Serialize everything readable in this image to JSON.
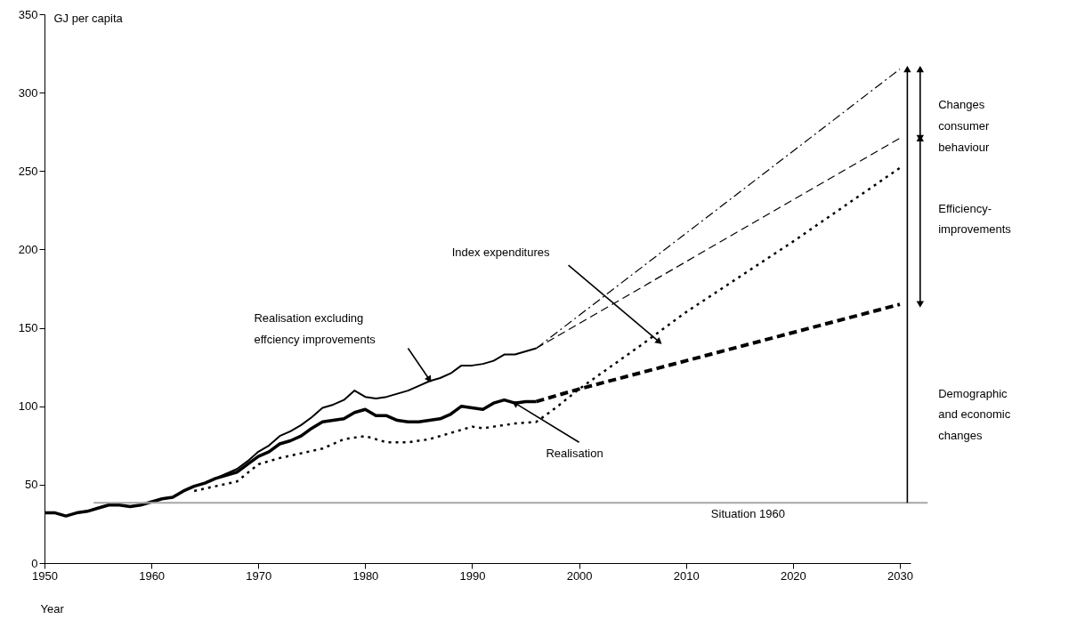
{
  "chart_data": {
    "type": "line",
    "xlabel": "Year",
    "ylabel": "GJ per capita",
    "xlim": [
      1950,
      2031
    ],
    "xticks": [
      1950,
      1960,
      1970,
      1980,
      1990,
      2000,
      2010,
      2020,
      2030
    ],
    "ylim": [
      0,
      350
    ],
    "yticks": [
      0,
      50,
      100,
      150,
      200,
      250,
      300,
      350
    ],
    "grid": false,
    "marker": "none",
    "series": [
      {
        "color": "#000000",
        "line_style": "solid",
        "x": [
          1950,
          1951,
          1952,
          1953,
          1954,
          1955,
          1956,
          1957,
          1958,
          1959,
          1960,
          1961,
          1962,
          1963,
          1964,
          1965,
          1966,
          1967,
          1968,
          1969,
          1970,
          1971,
          1972,
          1973,
          1974,
          1975,
          1976,
          1977,
          1978,
          1979,
          1980,
          1981,
          1982,
          1983,
          1984,
          1985,
          1986,
          1987,
          1988,
          1989,
          1990,
          1991,
          1992,
          1993,
          1994,
          1995,
          1996
        ],
        "values": [
          32,
          32,
          30,
          32,
          33,
          35,
          37,
          37,
          36,
          37,
          39,
          41,
          42,
          46,
          49,
          51,
          54,
          57,
          60,
          65,
          71,
          75,
          81,
          84,
          88,
          93,
          99,
          101,
          104,
          110,
          106,
          105,
          106,
          108,
          110,
          113,
          116,
          118,
          121,
          126,
          126,
          127,
          129,
          133,
          133,
          135,
          137
        ]
      },
      {
        "color": "#000000",
        "line_style": "solid",
        "x": [
          1950,
          1951,
          1952,
          1953,
          1954,
          1955,
          1956,
          1957,
          1958,
          1959,
          1960,
          1961,
          1962,
          1963,
          1964,
          1965,
          1966,
          1967,
          1968,
          1969,
          1970,
          1971,
          1972,
          1973,
          1974,
          1975,
          1976,
          1977,
          1978,
          1979,
          1980,
          1981,
          1982,
          1983,
          1984,
          1985,
          1986,
          1987,
          1988,
          1989,
          1990,
          1991,
          1992,
          1993,
          1994,
          1995,
          1996
        ],
        "values": [
          32,
          32,
          30,
          32,
          33,
          35,
          37,
          37,
          36,
          37,
          39,
          41,
          42,
          46,
          49,
          51,
          54,
          56,
          58,
          63,
          68,
          71,
          76,
          78,
          81,
          86,
          90,
          91,
          92,
          96,
          98,
          94,
          94,
          91,
          90,
          90,
          91,
          92,
          95,
          100,
          99,
          98,
          102,
          104,
          102,
          103,
          103
        ]
      },
      {
        "color": "#000000",
        "line_style": "dotted",
        "x": [
          1964,
          1966,
          1968,
          1970,
          1972,
          1974,
          1976,
          1978,
          1980,
          1982,
          1984,
          1986,
          1988,
          1990,
          1991,
          1992,
          1994,
          1996,
          1998,
          2000,
          2006,
          2010,
          2020,
          2030
        ],
        "values": [
          46,
          49,
          52,
          63,
          67,
          70,
          73,
          79,
          81,
          77,
          77,
          79,
          83,
          87,
          86,
          87,
          89,
          90,
          100,
          111,
          140,
          160,
          205,
          252
        ]
      },
      {
        "color": "#000000",
        "line_style": "dashed",
        "x": [
          1996,
          2000,
          2030
        ],
        "values": [
          103,
          111,
          165
        ]
      },
      {
        "color": "#000000",
        "line_style": "dashed",
        "x": [
          1996,
          2030
        ],
        "values": [
          137,
          271
        ]
      },
      {
        "color": "#000000",
        "line_style": "dashdot",
        "x": [
          1996,
          2030
        ],
        "values": [
          137,
          315
        ]
      }
    ],
    "ref_lines": [
      {
        "axis": "y",
        "value": 38.5,
        "label": "Situation 1960",
        "color": "#a6a6a6"
      }
    ],
    "annotations": [
      "Index expenditures",
      "Realisation excluding\neffciency improvements",
      {
        "text": "Realisation",
        "x": 1994,
        "y": 102
      },
      "Changes\nconsumer\nbehaviour",
      "Efficiency-\nimprovements",
      "Demographic\nand economic\nchanges"
    ]
  }
}
